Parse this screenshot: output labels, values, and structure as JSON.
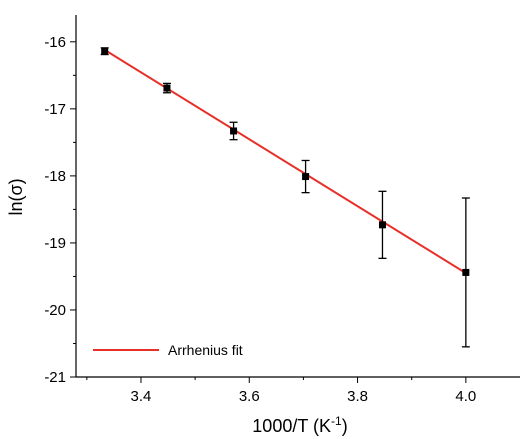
{
  "chart_data": {
    "type": "scatter",
    "xlabel_base": "1000/T (K",
    "xlabel_sup": "-1",
    "xlabel_end": ")",
    "ylabel": "ln(σ)",
    "xlim": [
      3.28,
      4.1
    ],
    "ylim": [
      -21,
      -15.6
    ],
    "x_ticks": [
      3.4,
      3.6,
      3.8,
      4.0
    ],
    "x_tick_labels": [
      "3.4",
      "3.6",
      "3.8",
      "4.0"
    ],
    "y_ticks": [
      -21,
      -20,
      -19,
      -18,
      -17,
      -16
    ],
    "y_tick_labels": [
      "-21",
      "-20",
      "-19",
      "-18",
      "-17",
      "-16"
    ],
    "legend": {
      "position": "bottom-left",
      "entries": [
        "Arrhenius fit"
      ]
    },
    "grid": false,
    "series": [
      {
        "points": [
          {
            "x": 3.333,
            "y": -16.14,
            "err": 0.05
          },
          {
            "x": 3.448,
            "y": -16.69,
            "err": 0.07
          },
          {
            "x": 3.571,
            "y": -17.33,
            "err": 0.13
          },
          {
            "x": 3.704,
            "y": -18.01,
            "err": 0.24
          },
          {
            "x": 3.846,
            "y": -18.73,
            "err": 0.5
          },
          {
            "x": 4.0,
            "y": -19.44,
            "err": 1.11
          }
        ],
        "color": "#000000"
      },
      {
        "name": "Arrhenius fit",
        "type": "line",
        "x": [
          3.333,
          4.0
        ],
        "y": [
          -16.12,
          -19.45
        ],
        "color": "#e8302a"
      }
    ]
  }
}
